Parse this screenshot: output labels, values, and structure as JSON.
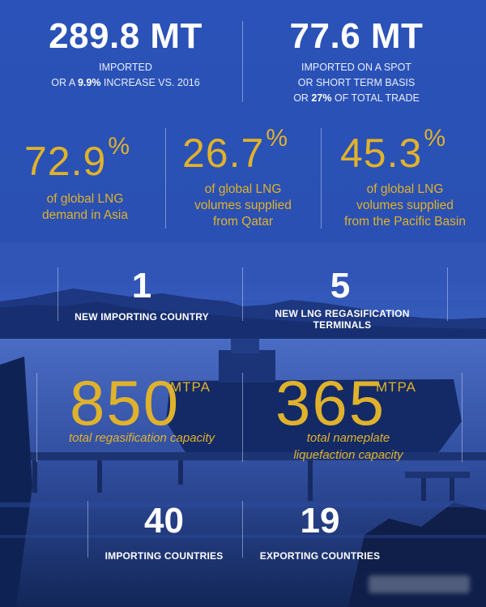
{
  "stats_top": {
    "left": {
      "value": "289.8 MT",
      "line1": "IMPORTED",
      "line2_pre": "OR A ",
      "line2_bold": "9.9%",
      "line2_post": " INCREASE VS. 2016"
    },
    "right": {
      "value": "77.6 MT",
      "line1": "IMPORTED ON A SPOT",
      "line2": "OR SHORT TERM BASIS",
      "line3_pre": "OR ",
      "line3_bold": "27%",
      "line3_post": " OF TOTAL TRADE"
    }
  },
  "percents": [
    {
      "value": "72.9",
      "symbol": "%",
      "line1": "of global LNG",
      "line2": "demand in Asia",
      "line3": ""
    },
    {
      "value": "26.7",
      "symbol": "%",
      "line1": "of global LNG",
      "line2": "volumes supplied",
      "line3": "from Qatar"
    },
    {
      "value": "45.3",
      "symbol": "%",
      "line1": "of global LNG",
      "line2": "volumes supplied",
      "line3": "from the Pacific Basin"
    }
  ],
  "counts_mid": [
    {
      "value": "1",
      "label": "NEW IMPORTING COUNTRY"
    },
    {
      "value": "5",
      "label": "NEW LNG REGASIFICATION TERMINALS"
    }
  ],
  "capacities": [
    {
      "value": "850",
      "unit": "MTPA",
      "line1": "total regasification capacity",
      "line2": ""
    },
    {
      "value": "365",
      "unit": "MTPA",
      "line1": "total nameplate",
      "line2": "liquefaction capacity"
    }
  ],
  "counts_bottom": [
    {
      "value": "40",
      "label": "IMPORTING COUNTRIES"
    },
    {
      "value": "19",
      "label": "EXPORTING COUNTRIES"
    }
  ],
  "colors": {
    "gold": "#e0b22c",
    "white": "#ffffff",
    "background": "#2349b0"
  }
}
